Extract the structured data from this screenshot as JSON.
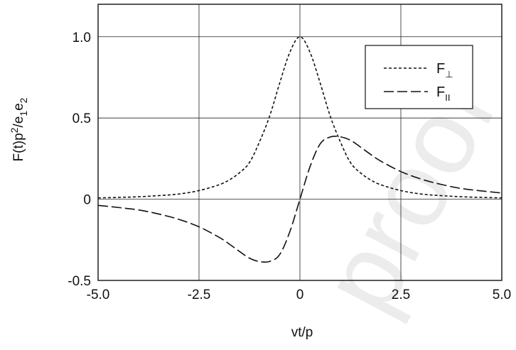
{
  "chart_data": {
    "type": "line",
    "title": "",
    "xlabel": "vt/p",
    "ylabel": {
      "parts": [
        {
          "text": "F(t)p",
          "shift": "none"
        },
        {
          "text": "2",
          "shift": "super"
        },
        {
          "text": "/e",
          "shift": "none"
        },
        {
          "text": "1",
          "shift": "sub"
        },
        {
          "text": "e",
          "shift": "none"
        },
        {
          "text": "2",
          "shift": "sub"
        }
      ]
    },
    "xlim": [
      -5.0,
      5.0
    ],
    "ylim": [
      -0.5,
      1.2
    ],
    "x_ticks": [
      {
        "value": -5.0,
        "label": "-5.0"
      },
      {
        "value": -2.5,
        "label": "-2.5"
      },
      {
        "value": 0,
        "label": "0"
      },
      {
        "value": 2.5,
        "label": "2.5"
      },
      {
        "value": 5.0,
        "label": "5.0"
      }
    ],
    "y_ticks": [
      {
        "value": -0.5,
        "label": "-0.5"
      },
      {
        "value": 0,
        "label": "0"
      },
      {
        "value": 0.5,
        "label": "0.5"
      },
      {
        "value": 1.0,
        "label": "1.0"
      }
    ],
    "grid": true,
    "legend_position": "top-right",
    "watermark": "proof",
    "series": [
      {
        "name": "F",
        "name_sub": "⊥",
        "dash": "short-dash",
        "x": [
          -5.0,
          -4.5,
          -4.0,
          -3.5,
          -3.0,
          -2.5,
          -2.0,
          -1.75,
          -1.5,
          -1.25,
          -1.0,
          -0.75,
          -0.5,
          -0.25,
          0.0,
          0.25,
          0.5,
          0.75,
          1.0,
          1.25,
          1.5,
          1.75,
          2.0,
          2.5,
          3.0,
          3.5,
          4.0,
          4.5,
          5.0
        ],
        "y": [
          0.008,
          0.011,
          0.015,
          0.022,
          0.032,
          0.053,
          0.089,
          0.119,
          0.162,
          0.226,
          0.354,
          0.512,
          0.716,
          0.904,
          1.0,
          0.904,
          0.716,
          0.512,
          0.354,
          0.226,
          0.162,
          0.119,
          0.089,
          0.053,
          0.032,
          0.022,
          0.015,
          0.011,
          0.008
        ]
      },
      {
        "name": "F",
        "name_sub": "II",
        "dash": "long-dash",
        "x": [
          -5.0,
          -4.5,
          -4.0,
          -3.5,
          -3.0,
          -2.5,
          -2.0,
          -1.75,
          -1.5,
          -1.25,
          -1.0,
          -0.75,
          -0.5,
          -0.25,
          0.0,
          0.25,
          0.5,
          0.75,
          1.0,
          1.25,
          1.5,
          1.75,
          2.0,
          2.5,
          3.0,
          3.5,
          4.0,
          4.5,
          5.0
        ],
        "y": [
          -0.038,
          -0.051,
          -0.066,
          -0.091,
          -0.124,
          -0.17,
          -0.235,
          -0.276,
          -0.321,
          -0.363,
          -0.384,
          -0.383,
          -0.34,
          -0.2,
          0.0,
          0.2,
          0.34,
          0.383,
          0.384,
          0.363,
          0.321,
          0.276,
          0.235,
          0.17,
          0.124,
          0.091,
          0.066,
          0.051,
          0.038
        ]
      }
    ]
  }
}
